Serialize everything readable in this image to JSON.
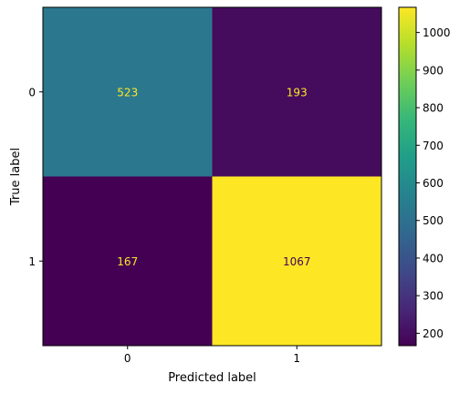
{
  "chart_data": {
    "type": "heatmap",
    "x_categories": [
      "0",
      "1"
    ],
    "y_categories": [
      "0",
      "1"
    ],
    "matrix": [
      [
        523,
        193
      ],
      [
        167,
        1067
      ]
    ],
    "xlabel": "Predicted label",
    "ylabel": "True label",
    "colormap": "viridis",
    "colorbar": {
      "range": [
        167,
        1067
      ],
      "ticks": [
        200,
        300,
        400,
        500,
        600,
        700,
        800,
        900,
        1000
      ]
    },
    "cell_text_colors": {
      "on_dark": "#fde725",
      "on_light": "#440154"
    }
  }
}
